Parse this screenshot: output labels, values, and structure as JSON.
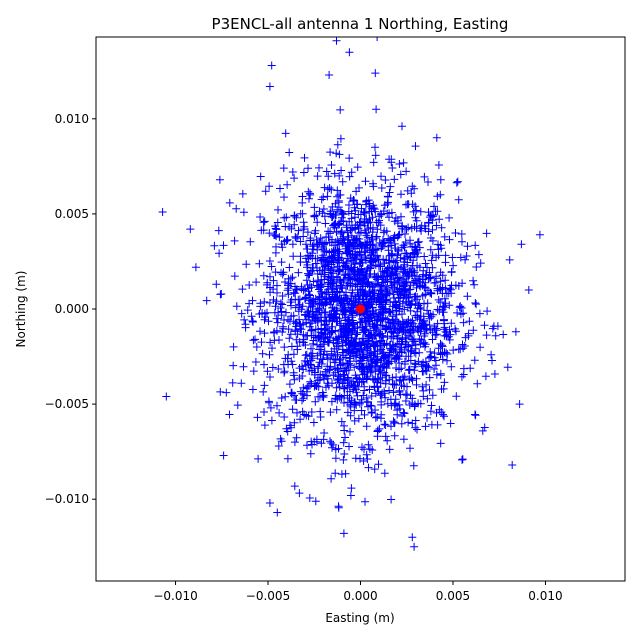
{
  "chart_data": {
    "type": "scatter",
    "title": "P3ENCL-all antenna 1 Northing, Easting",
    "xlabel": "Easting (m)",
    "ylabel": "Northing (m)",
    "xlim": [
      -0.0143,
      0.0143
    ],
    "ylim": [
      -0.0143,
      0.0143
    ],
    "xticks": [
      -0.01,
      -0.005,
      0.0,
      0.005,
      0.01
    ],
    "yticks": [
      -0.01,
      -0.005,
      0.0,
      0.005,
      0.01
    ],
    "xtick_labels": [
      "−0.010",
      "−0.005",
      "0.000",
      "0.005",
      "0.010"
    ],
    "ytick_labels": [
      "−0.010",
      "−0.005",
      "0.000",
      "0.005",
      "0.010"
    ],
    "grid": false,
    "series": [
      {
        "marker": "plus",
        "color": "#0000ff",
        "distribution": {
          "x_mean": 0.0,
          "y_mean": 0.0,
          "x_std": 0.0026,
          "y_std": 0.0033,
          "count": 2600
        },
        "outlier_points": [
          {
            "x": -0.0107,
            "y": 0.0051
          },
          {
            "x": -0.0092,
            "y": 0.0042
          },
          {
            "x": -0.0089,
            "y": 0.0022
          },
          {
            "x": -0.0105,
            "y": -0.0046
          },
          {
            "x": 0.0097,
            "y": 0.0039
          },
          {
            "x": 0.0091,
            "y": 0.001
          },
          {
            "x": 0.0087,
            "y": 0.0034
          },
          {
            "x": 0.0084,
            "y": -0.0012
          },
          {
            "x": 0.0086,
            "y": -0.005
          },
          {
            "x": 0.0082,
            "y": -0.0082
          },
          {
            "x": -0.0013,
            "y": 0.0141
          },
          {
            "x": 0.0009,
            "y": 0.0143
          },
          {
            "x": -0.0006,
            "y": 0.0135
          },
          {
            "x": -0.0048,
            "y": 0.0128
          },
          {
            "x": -0.0049,
            "y": 0.0117
          },
          {
            "x": -0.0017,
            "y": 0.0123
          },
          {
            "x": 0.0008,
            "y": 0.0124
          },
          {
            "x": 0.0029,
            "y": -0.0125
          },
          {
            "x": 0.0028,
            "y": -0.012
          },
          {
            "x": -0.0049,
            "y": -0.0102
          },
          {
            "x": -0.0045,
            "y": -0.0107
          },
          {
            "x": -0.0009,
            "y": -0.0118
          },
          {
            "x": -0.0074,
            "y": -0.0077
          },
          {
            "x": -0.0076,
            "y": 0.0068
          }
        ]
      },
      {
        "marker": "circle",
        "color": "#ff0000",
        "points": [
          {
            "x": 0.0,
            "y": 0.0
          }
        ]
      }
    ]
  }
}
